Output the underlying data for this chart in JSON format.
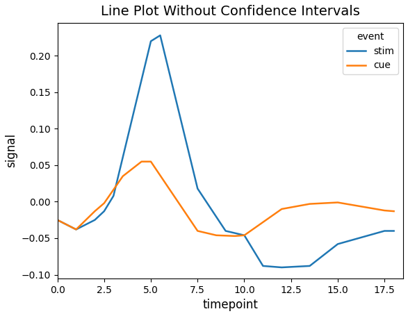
{
  "title": "Line Plot Without Confidence Intervals",
  "xlabel": "timepoint",
  "ylabel": "signal",
  "legend_title": "event",
  "stim": {
    "label": "stim",
    "color": "#1f77b4",
    "x": [
      0.0,
      1.0,
      2.0,
      2.5,
      3.0,
      5.0,
      5.5,
      7.5,
      9.0,
      10.0,
      11.0,
      12.0,
      13.5,
      15.0,
      17.5,
      18.0
    ],
    "y": [
      -0.025,
      -0.038,
      -0.025,
      -0.013,
      0.008,
      0.22,
      0.228,
      0.018,
      -0.04,
      -0.046,
      -0.088,
      -0.09,
      -0.088,
      -0.058,
      -0.04,
      -0.04
    ]
  },
  "cue": {
    "label": "cue",
    "color": "#ff7f0e",
    "x": [
      0.0,
      1.0,
      2.0,
      2.5,
      3.5,
      4.5,
      5.0,
      7.5,
      8.5,
      9.5,
      10.0,
      12.0,
      13.5,
      15.0,
      17.5,
      18.0
    ],
    "y": [
      -0.025,
      -0.038,
      -0.013,
      -0.002,
      0.035,
      0.055,
      0.055,
      -0.04,
      -0.046,
      -0.047,
      -0.046,
      -0.01,
      -0.003,
      -0.001,
      -0.012,
      -0.013
    ]
  },
  "xlim": [
    0.0,
    18.5
  ],
  "ylim": [
    -0.105,
    0.245
  ],
  "xticks": [
    0.0,
    2.5,
    5.0,
    7.5,
    10.0,
    12.5,
    15.0,
    17.5
  ],
  "yticks": [
    -0.1,
    -0.05,
    0.0,
    0.05,
    0.1,
    0.15,
    0.2
  ],
  "title_fontsize": 14,
  "label_fontsize": 12,
  "tick_fontsize": 10,
  "line_width": 1.8,
  "figsize": [
    5.87,
    4.55
  ],
  "dpi": 100
}
